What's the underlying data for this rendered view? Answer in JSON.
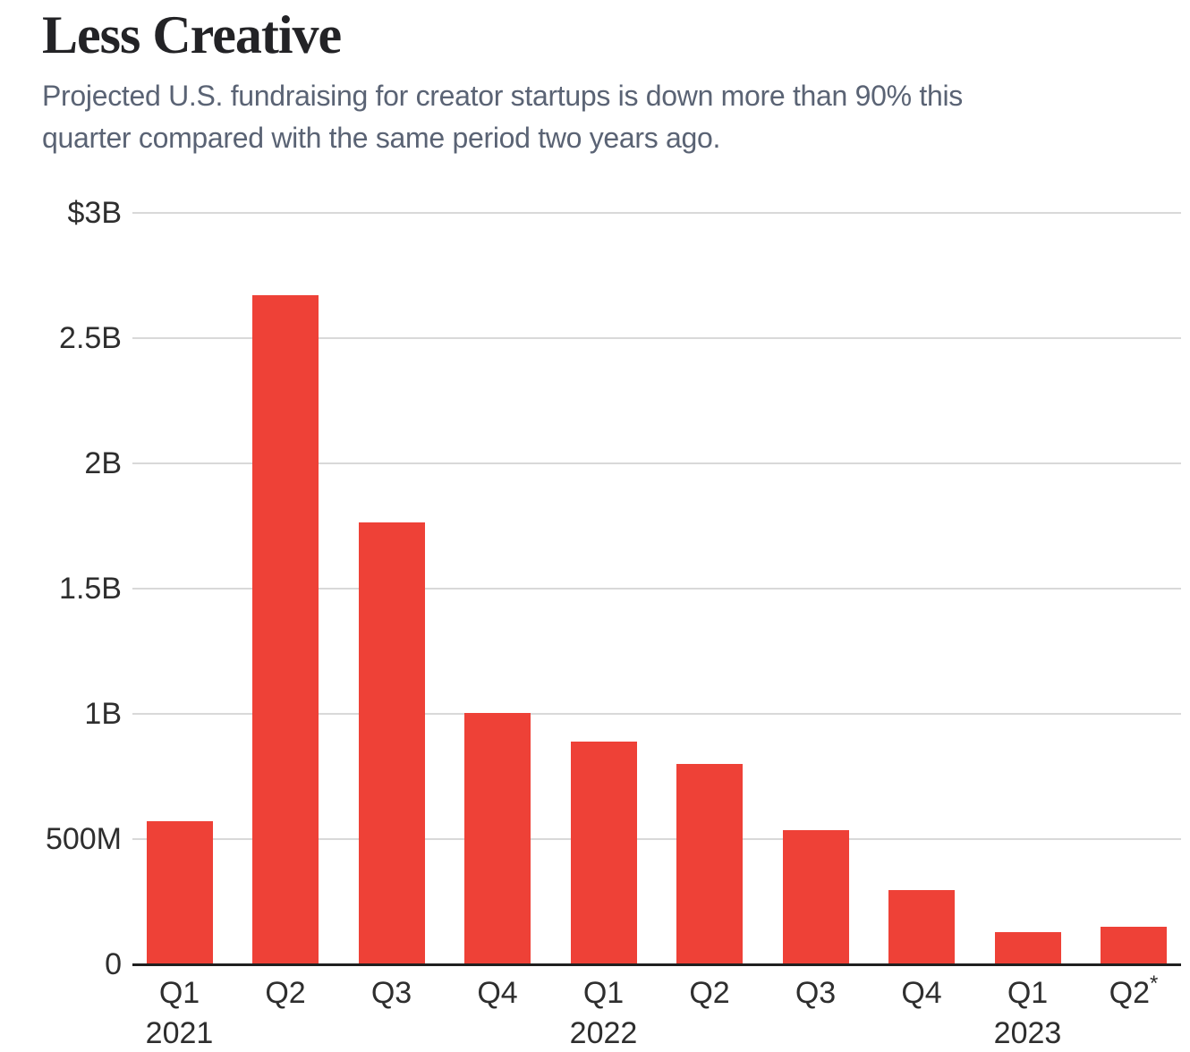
{
  "header": {
    "title": "Less Creative",
    "subtitle": "Projected U.S. fundraising for creator startups is down more than 90% this quarter compared with the same period two years ago.",
    "subtitle_lines": [
      "Projected U.S. fundraising for creator startups is down more than 90% this",
      "quarter compared with the same period two years ago."
    ]
  },
  "chart_data": {
    "type": "bar",
    "title": "Less Creative",
    "subtitle": "Projected U.S. fundraising for creator startups is down more than 90% this quarter compared with the same period two years ago.",
    "unit": "USD (millions)",
    "categories": [
      "Q1 2021",
      "Q2 2021",
      "Q3 2021",
      "Q4 2021",
      "Q1 2022",
      "Q2 2022",
      "Q3 2022",
      "Q4 2022",
      "Q1 2023",
      "Q2 2023*"
    ],
    "values": [
      570,
      2670,
      1765,
      1005,
      890,
      800,
      535,
      295,
      130,
      150
    ],
    "ylim": [
      0,
      3000
    ],
    "yticks": [
      {
        "value": 3000,
        "label": "$3B"
      },
      {
        "value": 2500,
        "label": "2.5B"
      },
      {
        "value": 2000,
        "label": "2B"
      },
      {
        "value": 1500,
        "label": "1.5B"
      },
      {
        "value": 1000,
        "label": "1B"
      },
      {
        "value": 500,
        "label": "500M"
      },
      {
        "value": 0,
        "label": "0"
      }
    ],
    "xticks": [
      {
        "quarter": "Q1",
        "year": "2021"
      },
      {
        "quarter": "Q2"
      },
      {
        "quarter": "Q3"
      },
      {
        "quarter": "Q4"
      },
      {
        "quarter": "Q1",
        "year": "2022"
      },
      {
        "quarter": "Q2"
      },
      {
        "quarter": "Q3"
      },
      {
        "quarter": "Q4"
      },
      {
        "quarter": "Q1",
        "year": "2023"
      },
      {
        "quarter": "Q2",
        "marker": "*"
      }
    ],
    "grid": true,
    "legend": "none",
    "colors": {
      "bar": "#EE4137",
      "gridline": "#D9D9D9",
      "axis_line": "#1F1F1F",
      "tick_text": "#2e2e2e",
      "title_text": "#232326",
      "subtitle_text": "#5a6374"
    }
  }
}
